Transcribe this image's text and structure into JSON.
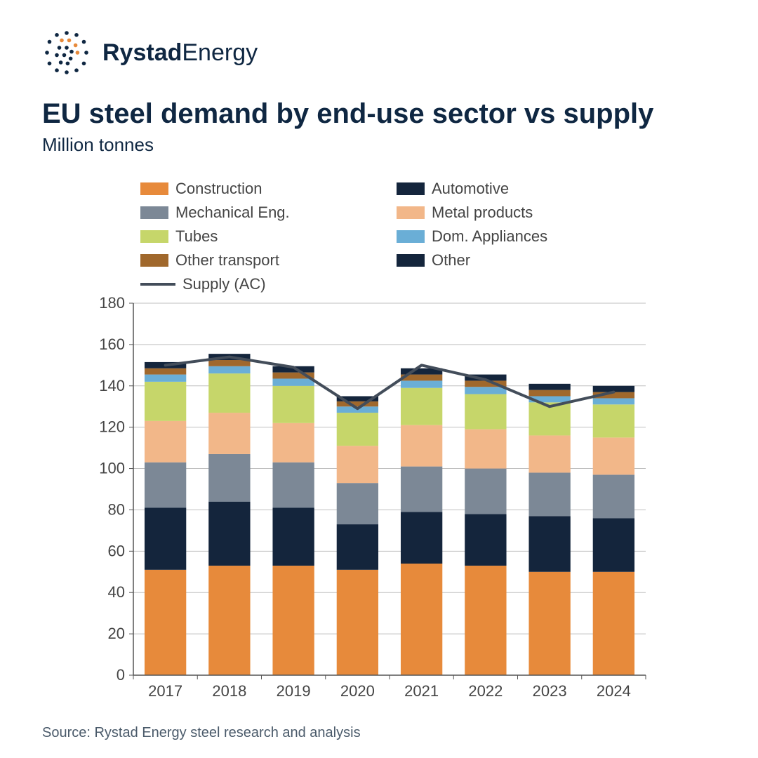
{
  "brand": {
    "name_bold": "Rystad",
    "name_light": "Energy"
  },
  "title": "EU steel demand by end-use sector vs supply",
  "subtitle": "Million tonnes",
  "source": "Source: Rystad Energy steel research and analysis",
  "chart": {
    "type": "stacked-bar-with-line",
    "categories": [
      "2017",
      "2018",
      "2019",
      "2020",
      "2021",
      "2022",
      "2023",
      "2024"
    ],
    "ylim": [
      0,
      180
    ],
    "ytick_step": 20,
    "bar_gap": 0.35,
    "label_fontsize": 22,
    "tick_fontsize": 22,
    "legend_fontsize": 22,
    "background_color": "#ffffff",
    "grid_color": "#bfbfbf",
    "axis_color": "#555555",
    "text_color": "#444444",
    "series": [
      {
        "name": "Construction",
        "color": "#e78a3b",
        "type": "bar",
        "values": [
          51,
          53,
          53,
          51,
          54,
          53,
          50,
          50
        ]
      },
      {
        "name": "Automotive",
        "color": "#14253c",
        "type": "bar",
        "values": [
          30,
          31,
          28,
          22,
          25,
          25,
          27,
          26
        ]
      },
      {
        "name": "Mechanical Eng.",
        "color": "#7c8896",
        "type": "bar",
        "values": [
          22,
          23,
          22,
          20,
          22,
          22,
          21,
          21
        ]
      },
      {
        "name": "Metal products",
        "color": "#f2b789",
        "type": "bar",
        "values": [
          20,
          20,
          19,
          18,
          20,
          19,
          18,
          18
        ]
      },
      {
        "name": "Tubes",
        "color": "#c6d66a",
        "type": "bar",
        "values": [
          19,
          19,
          18,
          16,
          18,
          17,
          16,
          16
        ]
      },
      {
        "name": "Dom. Appliances",
        "color": "#6aaed6",
        "type": "bar",
        "values": [
          3.5,
          3.5,
          3.5,
          3,
          3.5,
          3.5,
          3,
          3
        ]
      },
      {
        "name": "Other transport",
        "color": "#a0682c",
        "type": "bar",
        "values": [
          3,
          3,
          3,
          2.5,
          3,
          3,
          3,
          3
        ]
      },
      {
        "name": "Other",
        "color": "#14253c",
        "type": "bar",
        "values": [
          3,
          3,
          3,
          2.5,
          3,
          3,
          3,
          3
        ]
      },
      {
        "name": "Supply (AC)",
        "color": "#434d5a",
        "type": "line",
        "values": [
          150,
          154,
          149,
          129,
          150,
          143,
          130,
          137
        ],
        "line_width": 4
      }
    ],
    "legend_layout": [
      [
        "Construction",
        "Automotive"
      ],
      [
        "Mechanical Eng.",
        "Metal products"
      ],
      [
        "Tubes",
        "Dom. Appliances"
      ],
      [
        "Other transport",
        "Other"
      ],
      [
        "Supply (AC)"
      ]
    ]
  }
}
